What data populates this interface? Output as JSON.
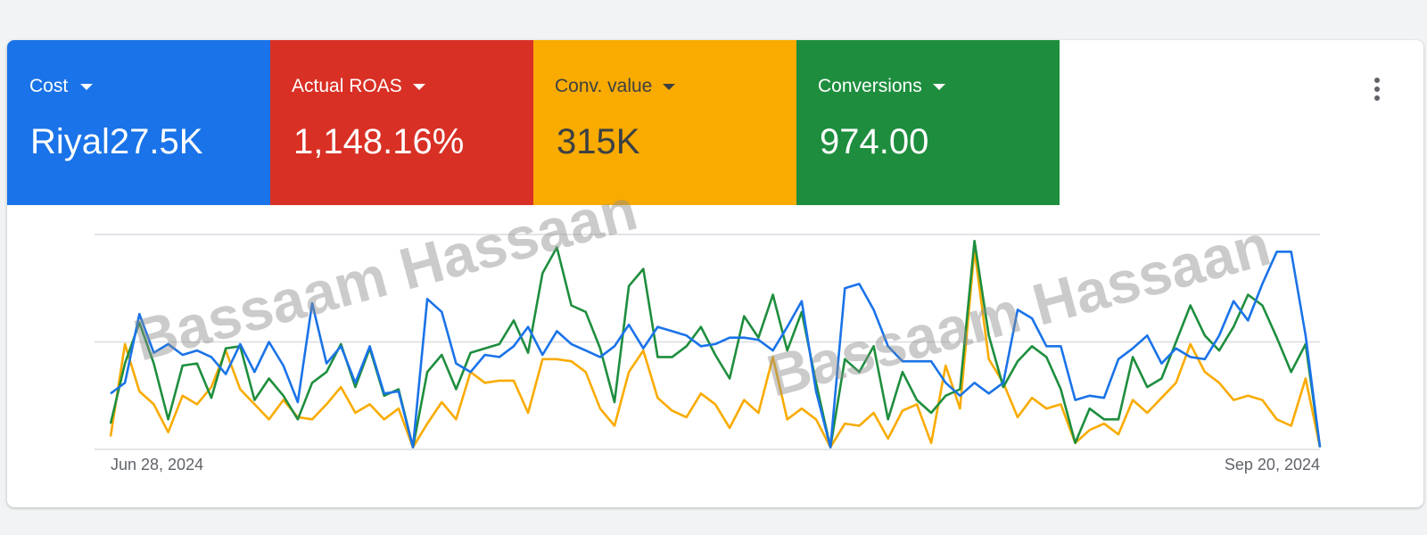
{
  "chart_data": {
    "type": "line",
    "metric": {
      "label": "Actual ROAS",
      "value": "1,148.16%",
      "color": "#d93025"
    },
    "categories": [
      "Jun 28, 2024",
      null,
      null,
      null,
      null,
      null,
      null,
      null,
      null,
      null,
      null,
      null,
      null,
      null,
      null,
      null,
      null,
      null,
      null,
      null,
      null,
      null,
      null,
      null,
      null,
      null,
      null,
      null,
      null,
      null,
      null,
      null,
      null,
      null,
      null,
      null,
      null,
      null,
      null,
      null,
      null,
      null,
      null,
      null,
      null,
      null,
      null,
      null,
      null,
      null,
      null,
      null,
      null,
      null,
      null,
      null,
      null,
      null,
      null,
      null,
      null,
      null,
      null,
      null,
      null,
      null,
      null,
      null,
      null,
      null,
      null,
      null,
      null,
      null,
      null,
      null,
      null,
      null,
      null,
      null,
      null,
      null,
      null,
      null,
      "Sep 20, 2024"
    ],
    "series": [
      {
        "name": "Cost",
        "total": "Riyal27.5K",
        "color": "#1a73e8",
        "values": [
          26,
          31,
          63,
          45,
          49,
          44,
          46,
          43,
          35,
          49,
          36,
          50,
          39,
          22,
          68,
          40,
          48,
          31,
          48,
          26,
          27,
          1,
          70,
          64,
          40,
          36,
          44,
          43,
          48,
          57,
          44,
          55,
          49,
          46,
          43,
          48,
          58,
          47,
          57,
          55,
          53,
          48,
          49,
          52,
          52,
          51,
          46,
          57,
          69,
          27,
          1,
          75,
          77,
          65,
          48,
          41,
          41,
          41,
          31,
          25,
          31,
          26,
          31,
          65,
          61,
          48,
          48,
          23,
          25,
          24,
          42,
          47,
          53,
          40,
          47,
          43,
          42,
          53,
          69,
          60,
          77,
          92,
          92,
          53,
          1
        ]
      },
      {
        "name": "Conv. value",
        "total": "315K",
        "color": "#f9ab00",
        "values": [
          6,
          49,
          27,
          21,
          8,
          25,
          21,
          29,
          46,
          28,
          21,
          14,
          23,
          15,
          14,
          21,
          29,
          17,
          21,
          14,
          19,
          1,
          12,
          22,
          14,
          36,
          31,
          32,
          32,
          17,
          42,
          42,
          41,
          36,
          19,
          11,
          36,
          46,
          24,
          18,
          15,
          26,
          21,
          10,
          23,
          17,
          43,
          14,
          19,
          14,
          1,
          12,
          11,
          17,
          5,
          18,
          21,
          3,
          39,
          19,
          93,
          42,
          31,
          15,
          24,
          19,
          21,
          3,
          9,
          12,
          7,
          23,
          17,
          24,
          31,
          49,
          36,
          31,
          23,
          25,
          23,
          14,
          11,
          33,
          1
        ]
      },
      {
        "name": "Conversions",
        "total": "974.00",
        "color": "#1e8e3e",
        "values": [
          12,
          40,
          59,
          40,
          14,
          39,
          40,
          24,
          47,
          48,
          23,
          33,
          25,
          14,
          31,
          36,
          49,
          29,
          47,
          25,
          28,
          1,
          36,
          44,
          28,
          45,
          47,
          49,
          60,
          45,
          82,
          94,
          67,
          64,
          47,
          22,
          76,
          84,
          43,
          43,
          48,
          57,
          44,
          33,
          62,
          52,
          72,
          46,
          64,
          31,
          1,
          42,
          36,
          48,
          14,
          36,
          23,
          17,
          25,
          28,
          97,
          53,
          29,
          41,
          48,
          43,
          28,
          3,
          19,
          14,
          14,
          43,
          29,
          33,
          50,
          67,
          53,
          46,
          57,
          72,
          67,
          52,
          36,
          49,
          1
        ]
      }
    ],
    "ylim": [
      0,
      100
    ],
    "yticks": [
      0,
      50,
      100
    ],
    "grid": true
  },
  "watermark": "Bassaam Hassaan"
}
